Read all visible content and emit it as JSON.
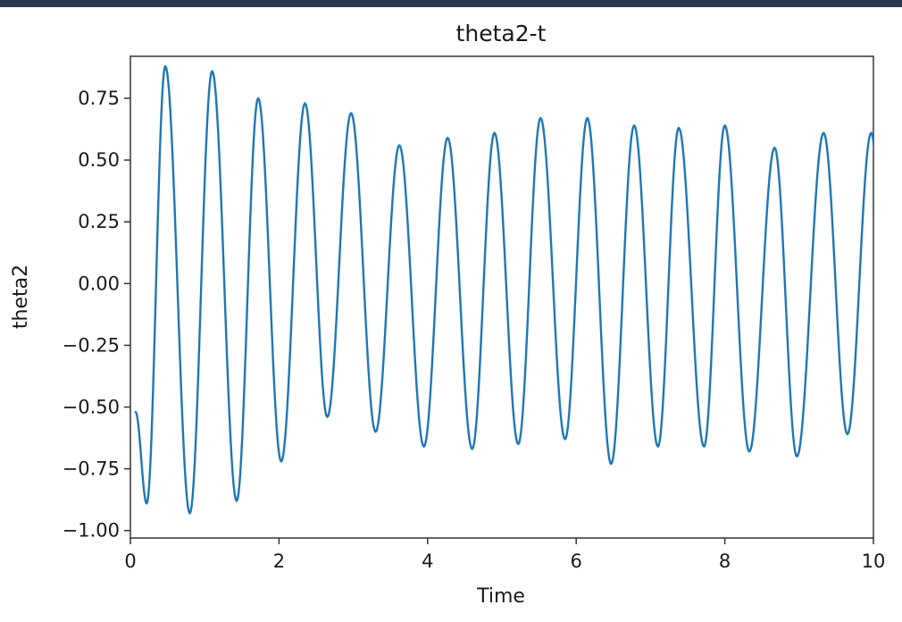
{
  "colors": {
    "line": "#1f77b4",
    "axes": "#333333",
    "top_strip": "#2b3a4a"
  },
  "chart_data": {
    "type": "line",
    "title": "theta2-t",
    "xlabel": "Time",
    "ylabel": "theta2",
    "xlim": [
      0,
      10
    ],
    "ylim": [
      -1.03,
      0.92
    ],
    "grid": false,
    "x_ticks": [
      0,
      2,
      4,
      6,
      8,
      10
    ],
    "x_tick_labels": [
      "0",
      "2",
      "4",
      "6",
      "8",
      "10"
    ],
    "y_ticks": [
      0.75,
      0.5,
      0.25,
      0.0,
      -0.25,
      -0.5,
      -0.75,
      -1.0
    ],
    "y_tick_labels": [
      "0.75",
      "0.50",
      "0.25",
      "0.00",
      "−0.25",
      "−0.50",
      "−0.75",
      "−1.00"
    ],
    "series": [
      {
        "color": "#1f77b4",
        "x": [
          0.07,
          0.22,
          0.47,
          0.8,
          1.1,
          1.43,
          1.72,
          2.03,
          2.35,
          2.65,
          2.97,
          3.3,
          3.62,
          3.95,
          4.27,
          4.6,
          4.9,
          5.22,
          5.52,
          5.85,
          6.15,
          6.47,
          6.78,
          7.1,
          7.38,
          7.72,
          8.0,
          8.33,
          8.67,
          8.97,
          9.33,
          9.65,
          9.97
        ],
        "y": [
          -0.52,
          -0.89,
          0.88,
          -0.93,
          0.86,
          -0.88,
          0.75,
          -0.72,
          0.73,
          -0.54,
          0.69,
          -0.6,
          0.56,
          -0.66,
          0.59,
          -0.67,
          0.61,
          -0.65,
          0.67,
          -0.63,
          0.67,
          -0.73,
          0.64,
          -0.66,
          0.63,
          -0.66,
          0.64,
          -0.68,
          0.55,
          -0.7,
          0.61,
          -0.61,
          0.61
        ]
      }
    ]
  }
}
